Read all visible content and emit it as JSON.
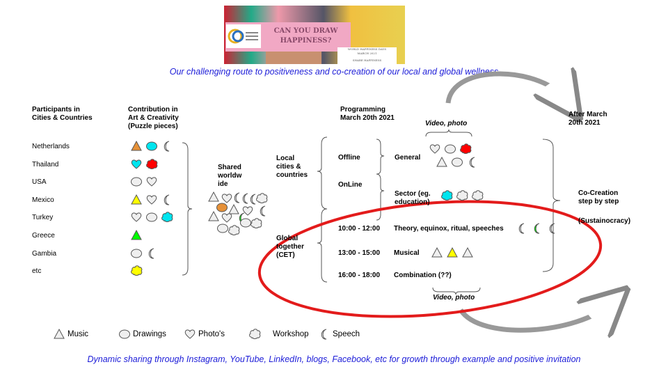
{
  "banner": {
    "title": "CAN YOU DRAW HAPPINESS?",
    "box_line1": "WORLD HAPPINESS DAYS",
    "box_line2": "MARCH 2021",
    "box_line3": "SHARE HAPPINESS",
    "logo_text": "SCHOOL OF TALENTS & WELLNESS"
  },
  "subtitle": "Our challenging route to positiveness and co-creation of our local and global wellness",
  "headers": {
    "participants": "Participants in\nCities & Countries",
    "contribution": "Contribution in\nArt & Creativity\n(Puzzle pieces)",
    "programming": "Programming\nMarch 20th 2021",
    "after": "After March\n20th 2021"
  },
  "countries": [
    {
      "name": "Netherlands",
      "pieces": [
        [
          "triangle",
          "#e69138"
        ],
        [
          "circle",
          "#00e5ef"
        ],
        [
          "moon",
          "#efefef"
        ]
      ]
    },
    {
      "name": "Thailand",
      "pieces": [
        [
          "heart",
          "#00e5ef"
        ],
        [
          "cloud",
          "#ff0000"
        ]
      ]
    },
    {
      "name": "USA",
      "pieces": [
        [
          "circle",
          "#efefef"
        ],
        [
          "heart",
          "#efefef"
        ]
      ]
    },
    {
      "name": "Mexico",
      "pieces": [
        [
          "triangle",
          "#ffff00"
        ],
        [
          "heart",
          "#efefef"
        ],
        [
          "moon",
          "#efefef"
        ]
      ]
    },
    {
      "name": "Turkey",
      "pieces": [
        [
          "heart",
          "#efefef"
        ],
        [
          "circle",
          "#efefef"
        ],
        [
          "cloud",
          "#00e5ef"
        ]
      ]
    },
    {
      "name": "Greece",
      "pieces": [
        [
          "triangle",
          "#00ff00"
        ]
      ]
    },
    {
      "name": "Gambia",
      "pieces": [
        [
          "circle",
          "#efefef"
        ],
        [
          "moon",
          "#efefef"
        ]
      ]
    },
    {
      "name": "etc",
      "pieces": [
        [
          "cloud",
          "#ffff00"
        ]
      ]
    }
  ],
  "shared": "Shared\nworldw\nide",
  "local": "Local\ncities &\ncountries",
  "offline": "Offline",
  "online": "OnLine",
  "general": "General",
  "sector": "Sector (eg.\neducation)",
  "video_photo_top": "Video, photo",
  "video_photo_bottom": "Video, photo",
  "general_icons_row1": [
    [
      "heart",
      "#efefef"
    ],
    [
      "circle",
      "#efefef"
    ],
    [
      "cloud",
      "#ff0000"
    ]
  ],
  "general_icons_row2": [
    [
      "triangle",
      "#efefef"
    ],
    [
      "circle",
      "#efefef"
    ],
    [
      "moon",
      "#efefef"
    ]
  ],
  "sector_icons": [
    [
      "cloud",
      "#00e5ef"
    ],
    [
      "cloud",
      "#efefef"
    ],
    [
      "cloud",
      "#efefef"
    ]
  ],
  "global": "Global\ntogether\n(CET)",
  "sessions": [
    {
      "time": "10:00 - 12:00",
      "label": "Theory, equinox, ritual, speeches",
      "icons": [
        [
          "moon",
          "#efefef"
        ],
        [
          "moon",
          "#00ff00"
        ],
        [
          "moon",
          "#efefef"
        ]
      ]
    },
    {
      "time": "13:00 - 15:00",
      "label": "Musical",
      "icons": [
        [
          "triangle",
          "#efefef"
        ],
        [
          "triangle",
          "#ffff00"
        ],
        [
          "triangle",
          "#efefef"
        ]
      ]
    },
    {
      "time": "16:00 - 18:00",
      "label": "Combination (??)",
      "icons": []
    }
  ],
  "cocreation": "Co-Creation\nstep by step",
  "sustainocracy": "(Sustainocracy)",
  "legend": [
    {
      "shape": "triangle",
      "label": "Music"
    },
    {
      "shape": "circle",
      "label": "Drawings"
    },
    {
      "shape": "heart",
      "label": "Photo's"
    },
    {
      "shape": "cloud",
      "label": "Workshop"
    },
    {
      "shape": "moon",
      "label": "Speech"
    }
  ],
  "footer": "Dynamic sharing through Instagram, YouTube, LinkedIn, blogs, Facebook, etc for growth through example and positive invitation",
  "colors": {
    "highlight_ellipse": "#e31b1b",
    "text_blue": "#1c1cd8",
    "piece_gray": "#efefef"
  }
}
